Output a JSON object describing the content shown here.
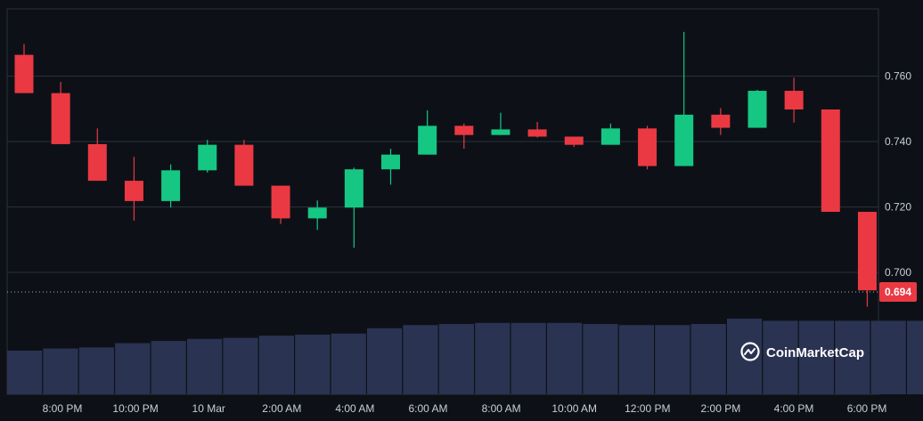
{
  "brand": {
    "name": "CoinMarketCap",
    "icon": "coinmarketcap-logo-icon"
  },
  "colors": {
    "background": "#0d1117",
    "grid": "#2a2f3a",
    "up": "#16c784",
    "down": "#ea3943",
    "volume": "#2b3352",
    "price_tag": "#ea3943",
    "text": "#c9ced6"
  },
  "chart_data": {
    "type": "candlestick",
    "title": "",
    "xlabel": "",
    "ylabel": "",
    "ylim": [
      0.68,
      0.778
    ],
    "y_ticks": [
      0.7,
      0.72,
      0.74,
      0.76
    ],
    "y_tick_labels": [
      "0.700",
      "0.720",
      "0.740",
      "0.760"
    ],
    "x_tick_labels": [
      "8:00 PM",
      "10:00 PM",
      "10 Mar",
      "2:00 AM",
      "4:00 AM",
      "6:00 AM",
      "8:00 AM",
      "10:00 AM",
      "12:00 PM",
      "2:00 PM",
      "4:00 PM",
      "6:00 PM"
    ],
    "current_price": 0.694,
    "current_price_label": "0.694",
    "grid": true,
    "candles": [
      {
        "o": 0.7665,
        "h": 0.7698,
        "l": 0.7548,
        "c": 0.7548
      },
      {
        "o": 0.7548,
        "h": 0.7582,
        "l": 0.7392,
        "c": 0.7392
      },
      {
        "o": 0.7392,
        "h": 0.744,
        "l": 0.728,
        "c": 0.728
      },
      {
        "o": 0.728,
        "h": 0.7353,
        "l": 0.7158,
        "c": 0.7218
      },
      {
        "o": 0.7218,
        "h": 0.733,
        "l": 0.7198,
        "c": 0.7312
      },
      {
        "o": 0.7312,
        "h": 0.7405,
        "l": 0.7305,
        "c": 0.739
      },
      {
        "o": 0.739,
        "h": 0.7405,
        "l": 0.7265,
        "c": 0.7265
      },
      {
        "o": 0.7265,
        "h": 0.7265,
        "l": 0.7148,
        "c": 0.7165
      },
      {
        "o": 0.7165,
        "h": 0.722,
        "l": 0.713,
        "c": 0.7198
      },
      {
        "o": 0.7198,
        "h": 0.732,
        "l": 0.7075,
        "c": 0.7315
      },
      {
        "o": 0.7315,
        "h": 0.7378,
        "l": 0.7268,
        "c": 0.736
      },
      {
        "o": 0.736,
        "h": 0.7495,
        "l": 0.736,
        "c": 0.7448
      },
      {
        "o": 0.7448,
        "h": 0.7455,
        "l": 0.7378,
        "c": 0.742
      },
      {
        "o": 0.742,
        "h": 0.7488,
        "l": 0.742,
        "c": 0.7437
      },
      {
        "o": 0.7437,
        "h": 0.746,
        "l": 0.7412,
        "c": 0.7415
      },
      {
        "o": 0.7415,
        "h": 0.7415,
        "l": 0.7383,
        "c": 0.739
      },
      {
        "o": 0.739,
        "h": 0.7455,
        "l": 0.739,
        "c": 0.744
      },
      {
        "o": 0.744,
        "h": 0.7448,
        "l": 0.7315,
        "c": 0.7325
      },
      {
        "o": 0.7325,
        "h": 0.7735,
        "l": 0.7325,
        "c": 0.7482
      },
      {
        "o": 0.7482,
        "h": 0.7502,
        "l": 0.742,
        "c": 0.7442
      },
      {
        "o": 0.7442,
        "h": 0.7558,
        "l": 0.7442,
        "c": 0.7555
      },
      {
        "o": 0.7555,
        "h": 0.7595,
        "l": 0.7458,
        "c": 0.7498
      },
      {
        "o": 0.7498,
        "h": 0.7498,
        "l": 0.7185,
        "c": 0.7185
      },
      {
        "o": 0.7185,
        "h": 0.7185,
        "l": 0.6895,
        "c": 0.6945
      }
    ],
    "volume": [
      0.41,
      0.43,
      0.44,
      0.48,
      0.5,
      0.52,
      0.53,
      0.55,
      0.56,
      0.57,
      0.62,
      0.65,
      0.66,
      0.67,
      0.67,
      0.67,
      0.66,
      0.65,
      0.65,
      0.66,
      0.71,
      0.69,
      0.69,
      0.69,
      0.69,
      0.69
    ]
  }
}
